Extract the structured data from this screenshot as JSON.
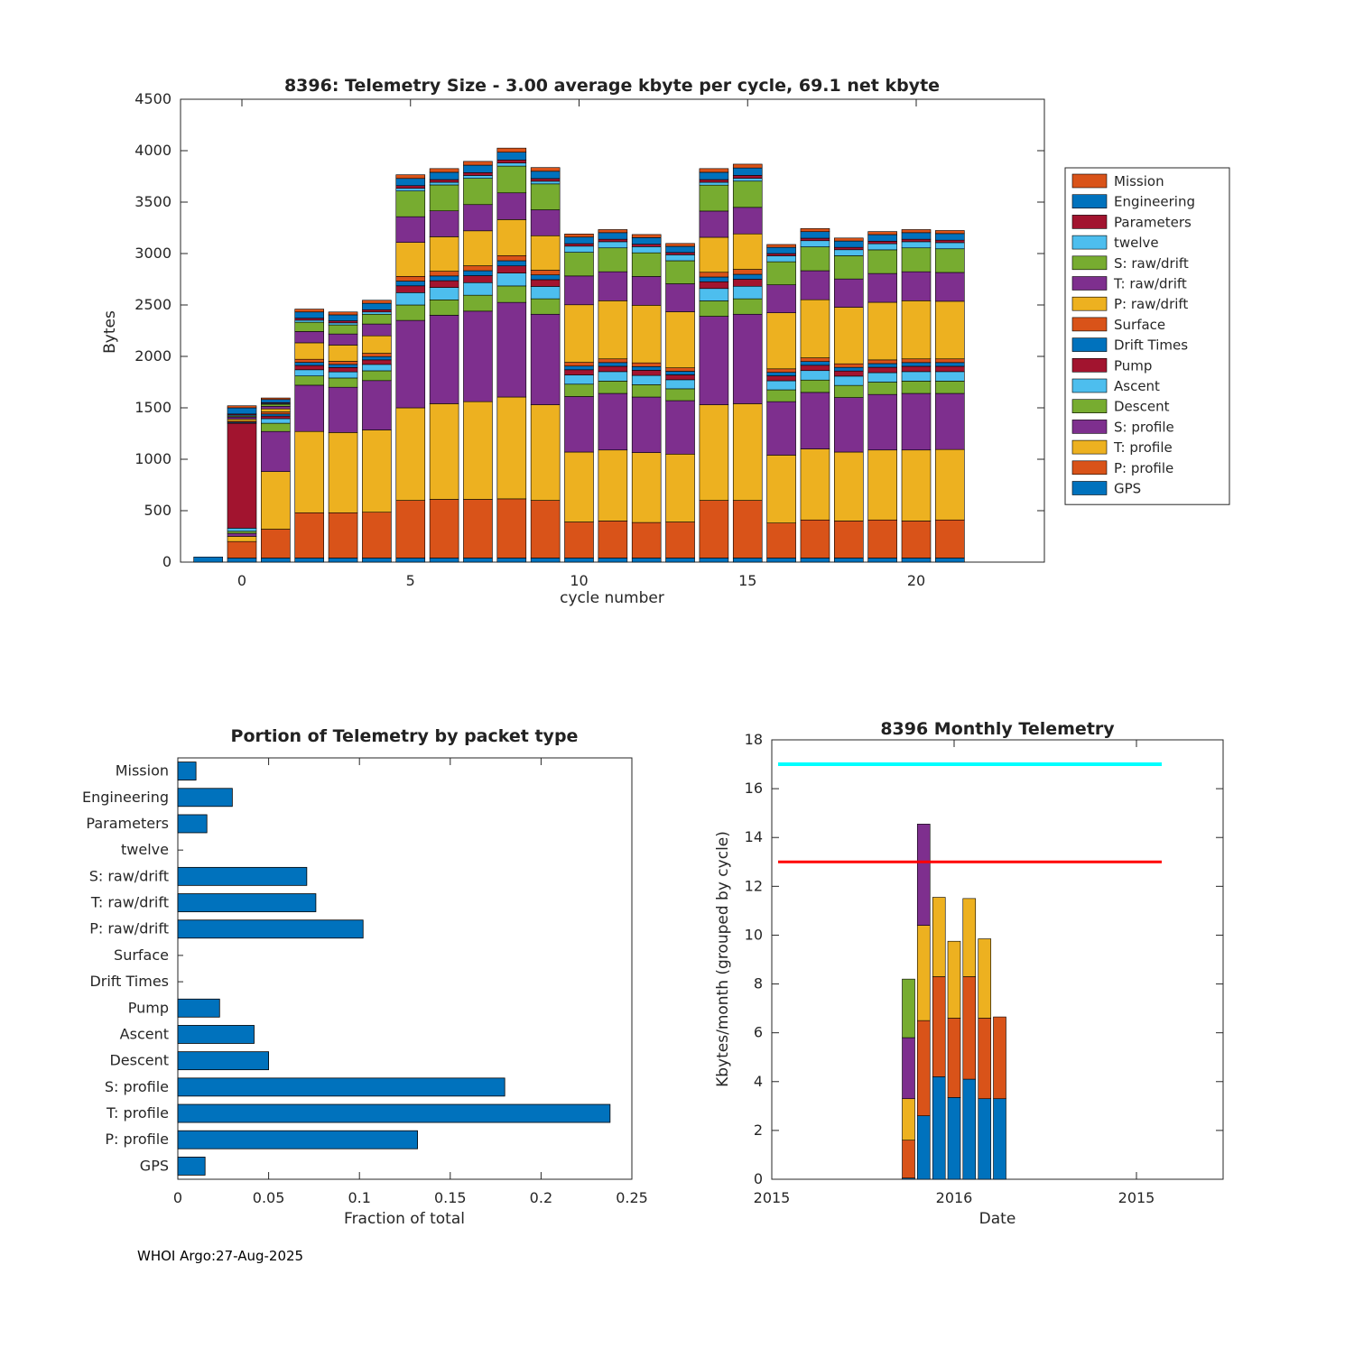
{
  "page": {
    "footer": "WHOI Argo:27-Aug-2025"
  },
  "palette": {
    "orange": "#D95319",
    "blue": "#0072BD",
    "darkred": "#A2142F",
    "lightblue": "#4DBEEE",
    "green": "#77AC30",
    "purple": "#7E2F8E",
    "yellow": "#EDB120",
    "axis": "#262626"
  },
  "chart_data": [
    {
      "id": "telemetry-size",
      "type": "bar",
      "stacked": true,
      "title": "8396: Telemetry Size - 3.00 average kbyte per cycle,   69.1 net kbyte",
      "xlabel": "cycle number",
      "ylabel": "Bytes",
      "ylim": [
        0,
        4500
      ],
      "yticks": [
        0,
        500,
        1000,
        1500,
        2000,
        2500,
        3000,
        3500,
        4000,
        4500
      ],
      "xticks": [
        0,
        5,
        10,
        15,
        20
      ],
      "cycles": [
        -1,
        0,
        1,
        2,
        3,
        4,
        5,
        6,
        7,
        8,
        9,
        10,
        11,
        12,
        13,
        14,
        15,
        16,
        17,
        18,
        19,
        20,
        21
      ],
      "series": [
        {
          "name": "GPS",
          "color": "#0072BD",
          "values": [
            50,
            40,
            40,
            40,
            40,
            40,
            40,
            40,
            40,
            40,
            40,
            40,
            40,
            40,
            40,
            40,
            40,
            40,
            40,
            40,
            40,
            40,
            40
          ]
        },
        {
          "name": "P: profile",
          "color": "#D95319",
          "values": [
            0,
            160,
            280,
            440,
            440,
            445,
            560,
            570,
            570,
            575,
            560,
            350,
            360,
            345,
            350,
            560,
            560,
            340,
            370,
            360,
            370,
            360,
            370
          ]
        },
        {
          "name": "T: profile",
          "color": "#EDB120",
          "values": [
            0,
            50,
            560,
            790,
            780,
            800,
            900,
            930,
            950,
            990,
            930,
            680,
            690,
            680,
            660,
            930,
            940,
            660,
            690,
            670,
            680,
            690,
            685
          ]
        },
        {
          "name": "S: profile",
          "color": "#7E2F8E",
          "values": [
            0,
            30,
            390,
            450,
            440,
            480,
            850,
            860,
            880,
            920,
            880,
            540,
            550,
            540,
            520,
            860,
            870,
            520,
            550,
            530,
            540,
            550,
            545
          ]
        },
        {
          "name": "Descent",
          "color": "#77AC30",
          "values": [
            0,
            20,
            80,
            90,
            90,
            95,
            150,
            150,
            155,
            160,
            150,
            120,
            120,
            120,
            115,
            150,
            150,
            115,
            120,
            118,
            120,
            120,
            120
          ]
        },
        {
          "name": "Ascent",
          "color": "#4DBEEE",
          "values": [
            0,
            30,
            45,
            60,
            60,
            62,
            120,
            120,
            122,
            125,
            120,
            90,
            92,
            90,
            88,
            120,
            122,
            88,
            92,
            90,
            92,
            92,
            92
          ]
        },
        {
          "name": "Pump",
          "color": "#A2142F",
          "values": [
            0,
            1020,
            25,
            42,
            42,
            44,
            66,
            66,
            68,
            70,
            66,
            50,
            52,
            50,
            48,
            66,
            68,
            48,
            52,
            50,
            52,
            52,
            52
          ]
        },
        {
          "name": "Drift Times",
          "color": "#0072BD",
          "values": [
            0,
            10,
            20,
            30,
            30,
            32,
            46,
            46,
            48,
            50,
            46,
            36,
            36,
            36,
            34,
            46,
            48,
            34,
            36,
            35,
            36,
            36,
            36
          ]
        },
        {
          "name": "Surface",
          "color": "#D95319",
          "values": [
            0,
            10,
            20,
            30,
            30,
            32,
            46,
            46,
            48,
            50,
            46,
            36,
            36,
            36,
            34,
            46,
            48,
            34,
            36,
            35,
            36,
            36,
            36
          ]
        },
        {
          "name": "P: raw/drift",
          "color": "#EDB120",
          "values": [
            0,
            20,
            30,
            160,
            158,
            170,
            330,
            335,
            340,
            350,
            335,
            560,
            565,
            560,
            545,
            340,
            345,
            545,
            565,
            550,
            560,
            565,
            560
          ]
        },
        {
          "name": "T: raw/drift",
          "color": "#7E2F8E",
          "values": [
            0,
            20,
            25,
            110,
            108,
            115,
            250,
            252,
            255,
            260,
            252,
            280,
            282,
            280,
            272,
            255,
            258,
            272,
            282,
            275,
            280,
            282,
            280
          ]
        },
        {
          "name": "S: raw/drift",
          "color": "#77AC30",
          "values": [
            0,
            10,
            20,
            90,
            88,
            95,
            250,
            252,
            255,
            260,
            252,
            230,
            232,
            230,
            224,
            252,
            255,
            224,
            232,
            226,
            230,
            232,
            230
          ]
        },
        {
          "name": "twelve",
          "color": "#4DBEEE",
          "values": [
            0,
            10,
            8,
            20,
            20,
            22,
            26,
            26,
            28,
            30,
            26,
            60,
            60,
            60,
            58,
            28,
            28,
            58,
            60,
            58,
            60,
            60,
            60
          ]
        },
        {
          "name": "Parameters",
          "color": "#A2142F",
          "values": [
            0,
            10,
            8,
            20,
            20,
            22,
            26,
            26,
            28,
            30,
            26,
            24,
            24,
            24,
            22,
            26,
            28,
            22,
            24,
            23,
            24,
            24,
            24
          ]
        },
        {
          "name": "Engineering",
          "color": "#0072BD",
          "values": [
            0,
            60,
            30,
            60,
            58,
            62,
            70,
            71,
            72,
            75,
            71,
            64,
            64,
            64,
            60,
            71,
            72,
            60,
            64,
            62,
            64,
            64,
            64
          ]
        },
        {
          "name": "Mission",
          "color": "#D95319",
          "values": [
            0,
            20,
            15,
            28,
            28,
            30,
            36,
            36,
            37,
            40,
            36,
            30,
            30,
            30,
            28,
            36,
            37,
            28,
            30,
            29,
            30,
            30,
            30
          ]
        }
      ],
      "legend": [
        {
          "label": "Mission",
          "color": "#D95319"
        },
        {
          "label": "Engineering",
          "color": "#0072BD"
        },
        {
          "label": "Parameters",
          "color": "#A2142F"
        },
        {
          "label": "twelve",
          "color": "#4DBEEE"
        },
        {
          "label": "S: raw/drift",
          "color": "#77AC30"
        },
        {
          "label": "T: raw/drift",
          "color": "#7E2F8E"
        },
        {
          "label": "P: raw/drift",
          "color": "#EDB120"
        },
        {
          "label": "Surface",
          "color": "#D95319"
        },
        {
          "label": "Drift Times",
          "color": "#0072BD"
        },
        {
          "label": "Pump",
          "color": "#A2142F"
        },
        {
          "label": "Ascent",
          "color": "#4DBEEE"
        },
        {
          "label": "Descent",
          "color": "#77AC30"
        },
        {
          "label": "S: profile",
          "color": "#7E2F8E"
        },
        {
          "label": "T: profile",
          "color": "#EDB120"
        },
        {
          "label": "P: profile",
          "color": "#D95319"
        },
        {
          "label": "GPS",
          "color": "#0072BD"
        }
      ]
    },
    {
      "id": "portion-by-packet-type",
      "type": "bar",
      "orientation": "horizontal",
      "title": "Portion of Telemetry by packet type",
      "xlabel": "Fraction of total",
      "xlim": [
        0,
        0.25
      ],
      "xticks": [
        0,
        0.05,
        0.1,
        0.15,
        0.2,
        0.25
      ],
      "bar_color": "#0072BD",
      "categories": [
        "Mission",
        "Engineering",
        "Parameters",
        "twelve",
        "S: raw/drift",
        "T: raw/drift",
        "P: raw/drift",
        "Surface",
        "Drift Times",
        "Pump",
        "Ascent",
        "Descent",
        "S: profile",
        "T: profile",
        "P: profile",
        "GPS"
      ],
      "values": [
        0.01,
        0.03,
        0.016,
        0.0,
        0.071,
        0.076,
        0.102,
        0.0,
        0.0,
        0.023,
        0.042,
        0.05,
        0.18,
        0.238,
        0.132,
        0.015
      ]
    },
    {
      "id": "monthly-telemetry",
      "type": "bar",
      "stacked": true,
      "title": "8396 Monthly Telemetry",
      "xlabel": "Date",
      "ylabel": "Kbytes/month (grouped by cycle)",
      "ylim": [
        0,
        18
      ],
      "yticks": [
        0,
        2,
        4,
        6,
        8,
        10,
        12,
        14,
        16,
        18
      ],
      "xticks": [
        {
          "pos": 0,
          "label": "2015"
        },
        {
          "pos": 1,
          "label": "2016"
        },
        {
          "pos": 2,
          "label": "2015"
        }
      ],
      "x": [
        0.75,
        0.833,
        0.917,
        1.0,
        1.083,
        1.167,
        1.25
      ],
      "series": [
        {
          "name": "stack-segment-1",
          "color": "#0072BD",
          "values": [
            0.05,
            2.6,
            4.2,
            3.35,
            4.1,
            3.3,
            3.3
          ]
        },
        {
          "name": "stack-segment-2",
          "color": "#D95319",
          "values": [
            1.55,
            3.9,
            4.1,
            3.25,
            4.2,
            3.3,
            3.35
          ]
        },
        {
          "name": "stack-segment-3",
          "color": "#EDB120",
          "values": [
            1.7,
            3.9,
            3.25,
            3.15,
            3.2,
            3.25,
            0
          ]
        },
        {
          "name": "stack-segment-4",
          "color": "#7E2F8E",
          "values": [
            2.5,
            4.15,
            0,
            0,
            0,
            0,
            0
          ]
        },
        {
          "name": "stack-segment-5",
          "color": "#77AC30",
          "values": [
            2.4,
            0,
            0,
            0,
            0,
            0,
            0
          ]
        }
      ],
      "reference_lines": [
        {
          "y": 17,
          "color": "#00FFFF",
          "width": 4
        },
        {
          "y": 13,
          "color": "#FF0000",
          "width": 3
        }
      ]
    }
  ]
}
